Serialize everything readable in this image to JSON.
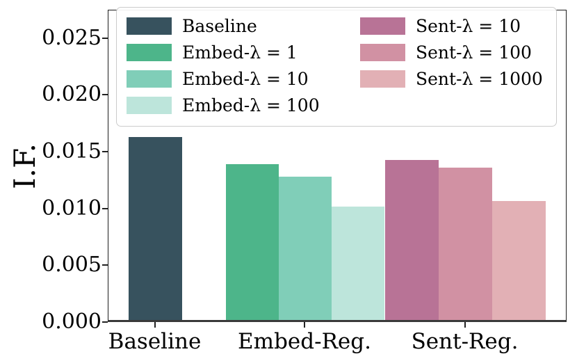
{
  "figure": {
    "background": "#ffffff",
    "spine_color": "#1c1c1c",
    "bottom_spine_color": "#3a3a3a"
  },
  "chart_data": {
    "type": "bar",
    "title": "",
    "xlabel": "",
    "ylabel": "I.F.",
    "ylim": [
      0,
      0.0275
    ],
    "grid": false,
    "legend_position": "upper-left",
    "y_ticks": [
      {
        "value": 0.0,
        "label": "0.000"
      },
      {
        "value": 0.005,
        "label": "0.005"
      },
      {
        "value": 0.01,
        "label": "0.010"
      },
      {
        "value": 0.015,
        "label": "0.015"
      },
      {
        "value": 0.02,
        "label": "0.020"
      },
      {
        "value": 0.025,
        "label": "0.025"
      }
    ],
    "categories": [
      "Baseline",
      "Embed-Reg.",
      "Sent-Reg."
    ],
    "groups": [
      {
        "category": "Baseline",
        "bars": [
          {
            "name": "Baseline",
            "value": 0.0161,
            "color": "#37525e"
          }
        ]
      },
      {
        "category": "Embed-Reg.",
        "bars": [
          {
            "name": "Embed-λ = 1",
            "value": 0.0137,
            "color": "#4db58a"
          },
          {
            "name": "Embed-λ = 10",
            "value": 0.0126,
            "color": "#80ceb8"
          },
          {
            "name": "Embed-λ = 100",
            "value": 0.01,
            "color": "#bde5db"
          }
        ]
      },
      {
        "category": "Sent-Reg.",
        "bars": [
          {
            "name": "Sent-λ = 10",
            "value": 0.0141,
            "color": "#b87396"
          },
          {
            "name": "Sent-λ = 100",
            "value": 0.0134,
            "color": "#d191a3"
          },
          {
            "name": "Sent-λ = 1000",
            "value": 0.0105,
            "color": "#e2b0b5"
          }
        ]
      }
    ],
    "legend": {
      "columns": [
        [
          {
            "label": "Baseline",
            "color": "#37525e"
          },
          {
            "label": "Embed-λ = 1",
            "color": "#4db58a"
          },
          {
            "label": "Embed-λ = 10",
            "color": "#80ceb8"
          },
          {
            "label": "Embed-λ = 100",
            "color": "#bde5db"
          }
        ],
        [
          {
            "label": "Sent-λ = 10",
            "color": "#b87396"
          },
          {
            "label": "Sent-λ = 100",
            "color": "#d191a3"
          },
          {
            "label": "Sent-λ = 1000",
            "color": "#e2b0b5"
          }
        ]
      ]
    }
  }
}
